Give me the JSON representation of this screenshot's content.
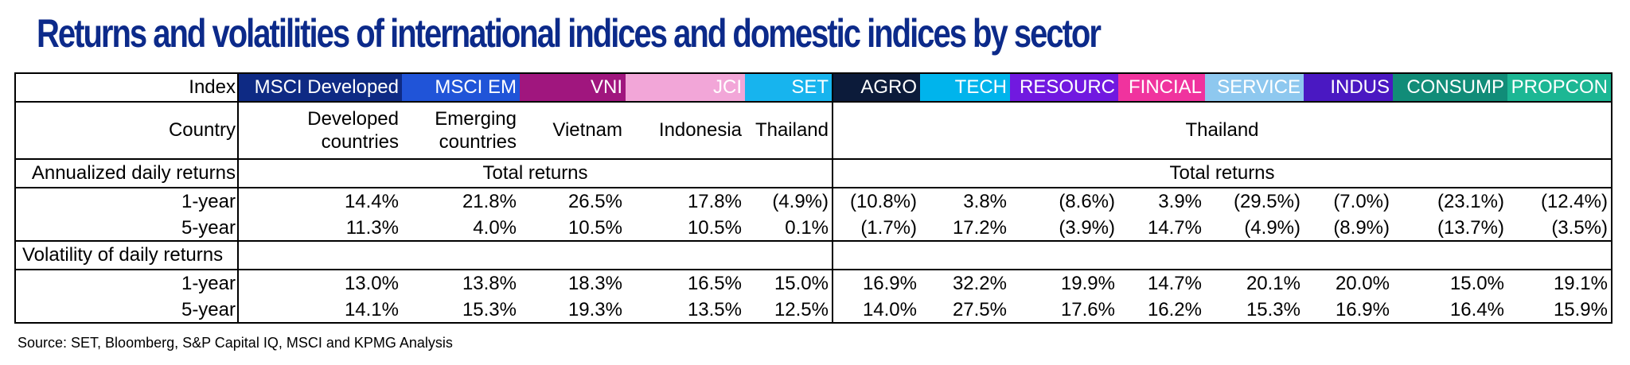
{
  "page": {
    "title": "Returns and volatilities of international indices and domestic indices by sector"
  },
  "chart_data": {
    "type": "table",
    "row_labels": {
      "index": "Index",
      "country": "Country",
      "returns_section": "Annualized daily returns",
      "volatility_section": "Volatility of daily returns",
      "one_year": "1-year",
      "five_year": "5-year"
    },
    "columns": [
      {
        "index": "MSCI Developed",
        "color": "#0e2a84"
      },
      {
        "index": "MSCI EM",
        "color": "#2054d8"
      },
      {
        "index": "VNI",
        "color": "#a0167e"
      },
      {
        "index": "JCI",
        "color": "#f2a6d8"
      },
      {
        "index": "SET",
        "color": "#17b4ee"
      },
      {
        "index": "AGRO",
        "color": "#0c1b3a"
      },
      {
        "index": "TECH",
        "color": "#00b4ec"
      },
      {
        "index": "RESOURC",
        "color": "#7119e0"
      },
      {
        "index": "FINCIAL",
        "color": "#f0339e"
      },
      {
        "index": "SERVICE",
        "color": "#8ec8ef"
      },
      {
        "index": "INDUS",
        "color": "#4a18c2"
      },
      {
        "index": "CONSUMP",
        "color": "#118c78"
      },
      {
        "index": "PROPCON",
        "color": "#1cb794"
      }
    ],
    "countries": {
      "developed_line1": "Developed",
      "developed_line2": "countries",
      "emerging_line1": "Emerging",
      "emerging_line2": "countries",
      "vietnam": "Vietnam",
      "indonesia": "Indonesia",
      "thailand": "Thailand",
      "thailand_sectors": "Thailand"
    },
    "returns_header_intl": "Total returns",
    "returns_header_sector": "Total returns",
    "returns_1y": [
      "14.4%",
      "21.8%",
      "26.5%",
      "17.8%",
      "(4.9%)",
      "(10.8%)",
      "3.8%",
      "(8.6%)",
      "3.9%",
      "(29.5%)",
      "(7.0%)",
      "(23.1%)",
      "(12.4%)"
    ],
    "returns_5y": [
      "11.3%",
      "4.0%",
      "10.5%",
      "10.5%",
      "0.1%",
      "(1.7%)",
      "17.2%",
      "(3.9%)",
      "14.7%",
      "(4.9%)",
      "(8.9%)",
      "(13.7%)",
      "(3.5%)"
    ],
    "volatility_1y": [
      "13.0%",
      "13.8%",
      "18.3%",
      "16.5%",
      "15.0%",
      "16.9%",
      "32.2%",
      "19.9%",
      "14.7%",
      "20.1%",
      "20.0%",
      "15.0%",
      "19.1%"
    ],
    "volatility_5y": [
      "14.1%",
      "15.3%",
      "19.3%",
      "13.5%",
      "12.5%",
      "14.0%",
      "27.5%",
      "17.6%",
      "16.2%",
      "15.3%",
      "16.9%",
      "16.4%",
      "15.9%"
    ]
  },
  "footer": {
    "source": "Source: SET, Bloomberg, S&P Capital IQ, MSCI and KPMG Analysis"
  }
}
